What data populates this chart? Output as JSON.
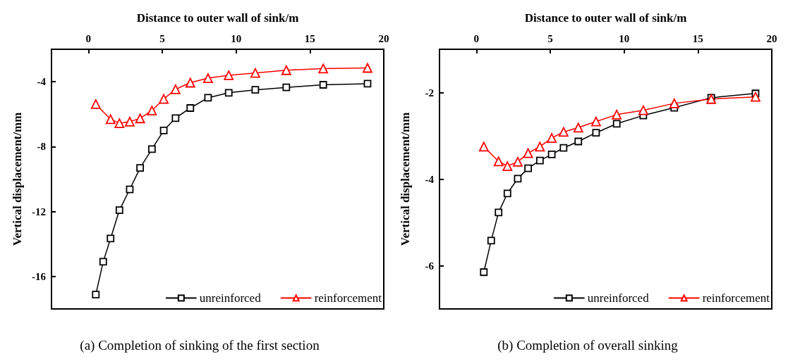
{
  "chart_data": [
    {
      "type": "line",
      "title": "(a) Completion of sinking of the first section",
      "xlabel": "Distance to outer wall of sink/m",
      "ylabel": "Vertical displacement/mm",
      "xlim": [
        -2.5,
        20
      ],
      "xticks": [
        0,
        5,
        10,
        15,
        20
      ],
      "ylim": [
        -18,
        -2
      ],
      "yticks": [
        -16,
        -12,
        -8,
        -4
      ],
      "grid": false,
      "legend": "bottom right",
      "line_style": "solid",
      "series": [
        {
          "name": "unreinforced",
          "color": "#000000",
          "marker": "square",
          "x": [
            0.5,
            1.0,
            1.5,
            2.1,
            2.8,
            3.5,
            4.3,
            5.1,
            5.9,
            6.9,
            8.1,
            9.5,
            11.3,
            13.4,
            15.9,
            18.9
          ],
          "values": [
            -17.12,
            -15.09,
            -13.66,
            -11.91,
            -10.63,
            -9.31,
            -8.15,
            -7.0,
            -6.24,
            -5.62,
            -4.99,
            -4.68,
            -4.5,
            -4.35,
            -4.19,
            -4.12
          ]
        },
        {
          "name": "reinforcement",
          "color": "#ff0000",
          "marker": "triangle",
          "x": [
            0.5,
            1.5,
            2.1,
            2.8,
            3.5,
            4.3,
            5.1,
            5.9,
            6.9,
            8.1,
            9.5,
            11.3,
            13.4,
            15.9,
            18.9
          ],
          "values": [
            -5.38,
            -6.31,
            -6.56,
            -6.46,
            -6.26,
            -5.78,
            -5.06,
            -4.47,
            -4.06,
            -3.78,
            -3.6,
            -3.46,
            -3.29,
            -3.19,
            -3.15
          ]
        }
      ]
    },
    {
      "type": "line",
      "title": "(b) Completion of overall sinking",
      "xlabel": "Distance to outer wall of sink/m",
      "ylabel": "Vertical displacement/mm",
      "xlim": [
        -2.5,
        20
      ],
      "xticks": [
        0,
        5,
        10,
        15,
        20
      ],
      "ylim": [
        -7,
        -1
      ],
      "yticks": [
        -6,
        -4,
        -2
      ],
      "grid": false,
      "legend": "bottom right",
      "line_style": "solid",
      "series": [
        {
          "name": "unreinforced",
          "color": "#000000",
          "marker": "square",
          "x": [
            0.5,
            1.0,
            1.5,
            2.1,
            2.8,
            3.5,
            4.3,
            5.1,
            5.9,
            6.9,
            8.1,
            9.5,
            11.3,
            13.4,
            15.9,
            18.9
          ],
          "values": [
            -6.15,
            -5.42,
            -4.77,
            -4.33,
            -3.99,
            -3.75,
            -3.57,
            -3.43,
            -3.28,
            -3.13,
            -2.93,
            -2.72,
            -2.53,
            -2.35,
            -2.12,
            -2.02
          ]
        },
        {
          "name": "reinforcement",
          "color": "#ff0000",
          "marker": "triangle",
          "x": [
            0.5,
            1.5,
            2.1,
            2.8,
            3.5,
            4.3,
            5.1,
            5.9,
            6.9,
            8.1,
            9.5,
            11.3,
            13.4,
            15.9,
            18.9
          ],
          "values": [
            -3.25,
            -3.59,
            -3.7,
            -3.6,
            -3.4,
            -3.25,
            -3.05,
            -2.91,
            -2.81,
            -2.67,
            -2.51,
            -2.41,
            -2.25,
            -2.15,
            -2.1
          ]
        }
      ]
    }
  ]
}
